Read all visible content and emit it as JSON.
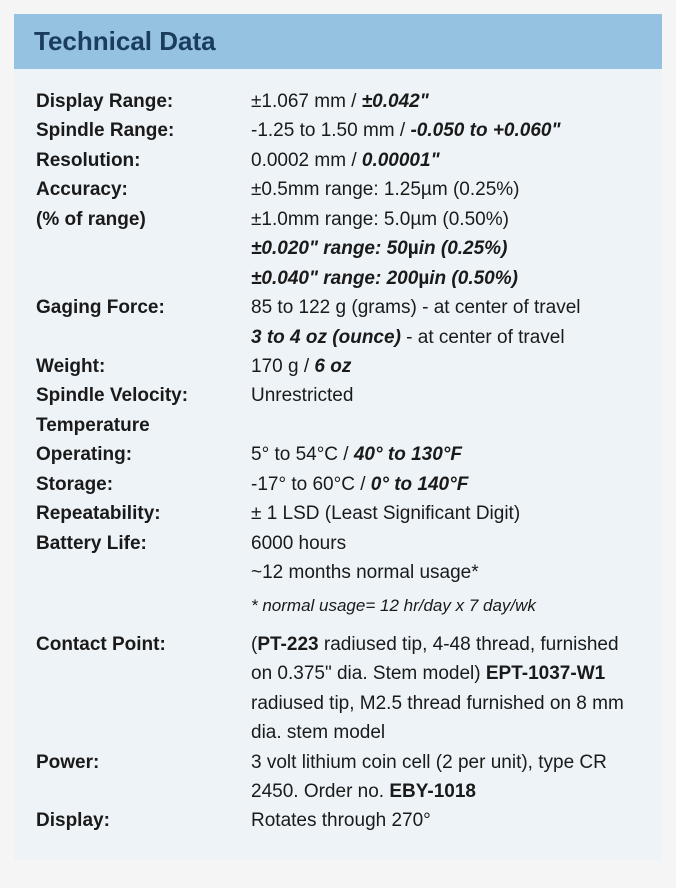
{
  "header": "Technical Data",
  "colors": {
    "header_bg": "#94c2e0",
    "header_text": "#1a3d5c",
    "content_bg": "#edf3f7",
    "text": "#1a1a1a"
  },
  "rows": {
    "display_range_label": "Display Range:",
    "display_range_v1": "±1.067 mm / ",
    "display_range_v2": "±0.042\"",
    "spindle_range_label": "Spindle Range:",
    "spindle_range_v1": "-1.25 to 1.50 mm / ",
    "spindle_range_v2": "-0.050 to +0.060\"",
    "resolution_label": "Resolution:",
    "resolution_v1": "0.0002 mm / ",
    "resolution_v2": "0.00001\"",
    "accuracy_label1": "Accuracy:",
    "accuracy_label2": "(% of range)",
    "accuracy_v1": "±0.5mm range: 1.25µm (0.25%)",
    "accuracy_v2": "±1.0mm range: 5.0µm (0.50%)",
    "accuracy_v3a": "±0.020\" range: 50",
    "accuracy_v3b": "µ",
    "accuracy_v3c": "in (0.25%)",
    "accuracy_v4a": "±0.040\" range: 200",
    "accuracy_v4b": "µ",
    "accuracy_v4c": "in (0.50%)",
    "gaging_label": "Gaging Force:",
    "gaging_v1": "85 to 122 g (grams) - at center of travel",
    "gaging_v2a": "3 to 4 oz (ounce)",
    "gaging_v2b": " - at center of travel",
    "weight_label": "Weight:",
    "weight_v1": "170 g / ",
    "weight_v2": "6 oz",
    "spindle_vel_label": "Spindle Velocity:",
    "spindle_vel_v": "Unrestricted",
    "temperature_label": "Temperature",
    "operating_label": "Operating:",
    "operating_v1": "5° to 54°C / ",
    "operating_v2": "40° to 130°F",
    "storage_label": "Storage:",
    "storage_v1": "-17° to 60°C / ",
    "storage_v2": "0° to 140°F",
    "repeat_label": "Repeatability:",
    "repeat_v": "± 1 LSD (Least Significant Digit)",
    "battery_label": "Battery Life:",
    "battery_v1": "6000 hours",
    "battery_v2": "~12 months normal usage*",
    "footnote": "* normal usage= 12 hr/day x 7 day/wk",
    "contact_label": "Contact Point:",
    "contact_v1a": "(",
    "contact_v1b": "PT-223",
    "contact_v1c": " radiused tip, 4-48 thread, furnished on 0.375\" dia. Stem model) ",
    "contact_v1d": "EPT-1037-W1",
    "contact_v1e": " radiused tip, M2.5 thread furnished on 8 mm dia. stem model",
    "power_label": "Power:",
    "power_v1": "3 volt lithium coin cell (2 per unit), type CR 2450. Order no. ",
    "power_v2": "EBY-1018",
    "display_label": "Display:",
    "display_v": "Rotates through 270°"
  }
}
